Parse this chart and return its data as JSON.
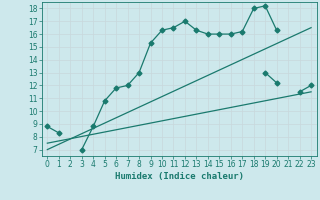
{
  "background_color": "#cde8ec",
  "line_color": "#1a7a6e",
  "grid_color": "#b8d8dc",
  "xlabel": "Humidex (Indice chaleur)",
  "xlim": [
    -0.5,
    23.5
  ],
  "ylim": [
    6.5,
    18.5
  ],
  "yticks": [
    7,
    8,
    9,
    10,
    11,
    12,
    13,
    14,
    15,
    16,
    17,
    18
  ],
  "xticks": [
    0,
    1,
    2,
    3,
    4,
    5,
    6,
    7,
    8,
    9,
    10,
    11,
    12,
    13,
    14,
    15,
    16,
    17,
    18,
    19,
    20,
    21,
    22,
    23
  ],
  "curve1_x": [
    0,
    1,
    3,
    4,
    5,
    6,
    7,
    8,
    9,
    10,
    11,
    12,
    13,
    14,
    15,
    16,
    17,
    18,
    19,
    20
  ],
  "curve1_y": [
    8.8,
    8.3,
    7.0,
    8.8,
    10.8,
    11.8,
    12.0,
    13.0,
    15.3,
    16.3,
    16.5,
    17.0,
    16.3,
    16.0,
    16.0,
    16.0,
    16.2,
    18.0,
    18.2,
    16.3
  ],
  "curve2_x": [
    19,
    20,
    22,
    23
  ],
  "curve2_y": [
    13.0,
    12.2,
    11.5,
    12.0
  ],
  "curve3_x": [
    0,
    23
  ],
  "curve3_y": [
    7.5,
    11.5
  ],
  "curve4_x": [
    0,
    23
  ],
  "curve4_y": [
    7.0,
    16.5
  ],
  "marker_size": 2.5,
  "linewidth": 0.9
}
